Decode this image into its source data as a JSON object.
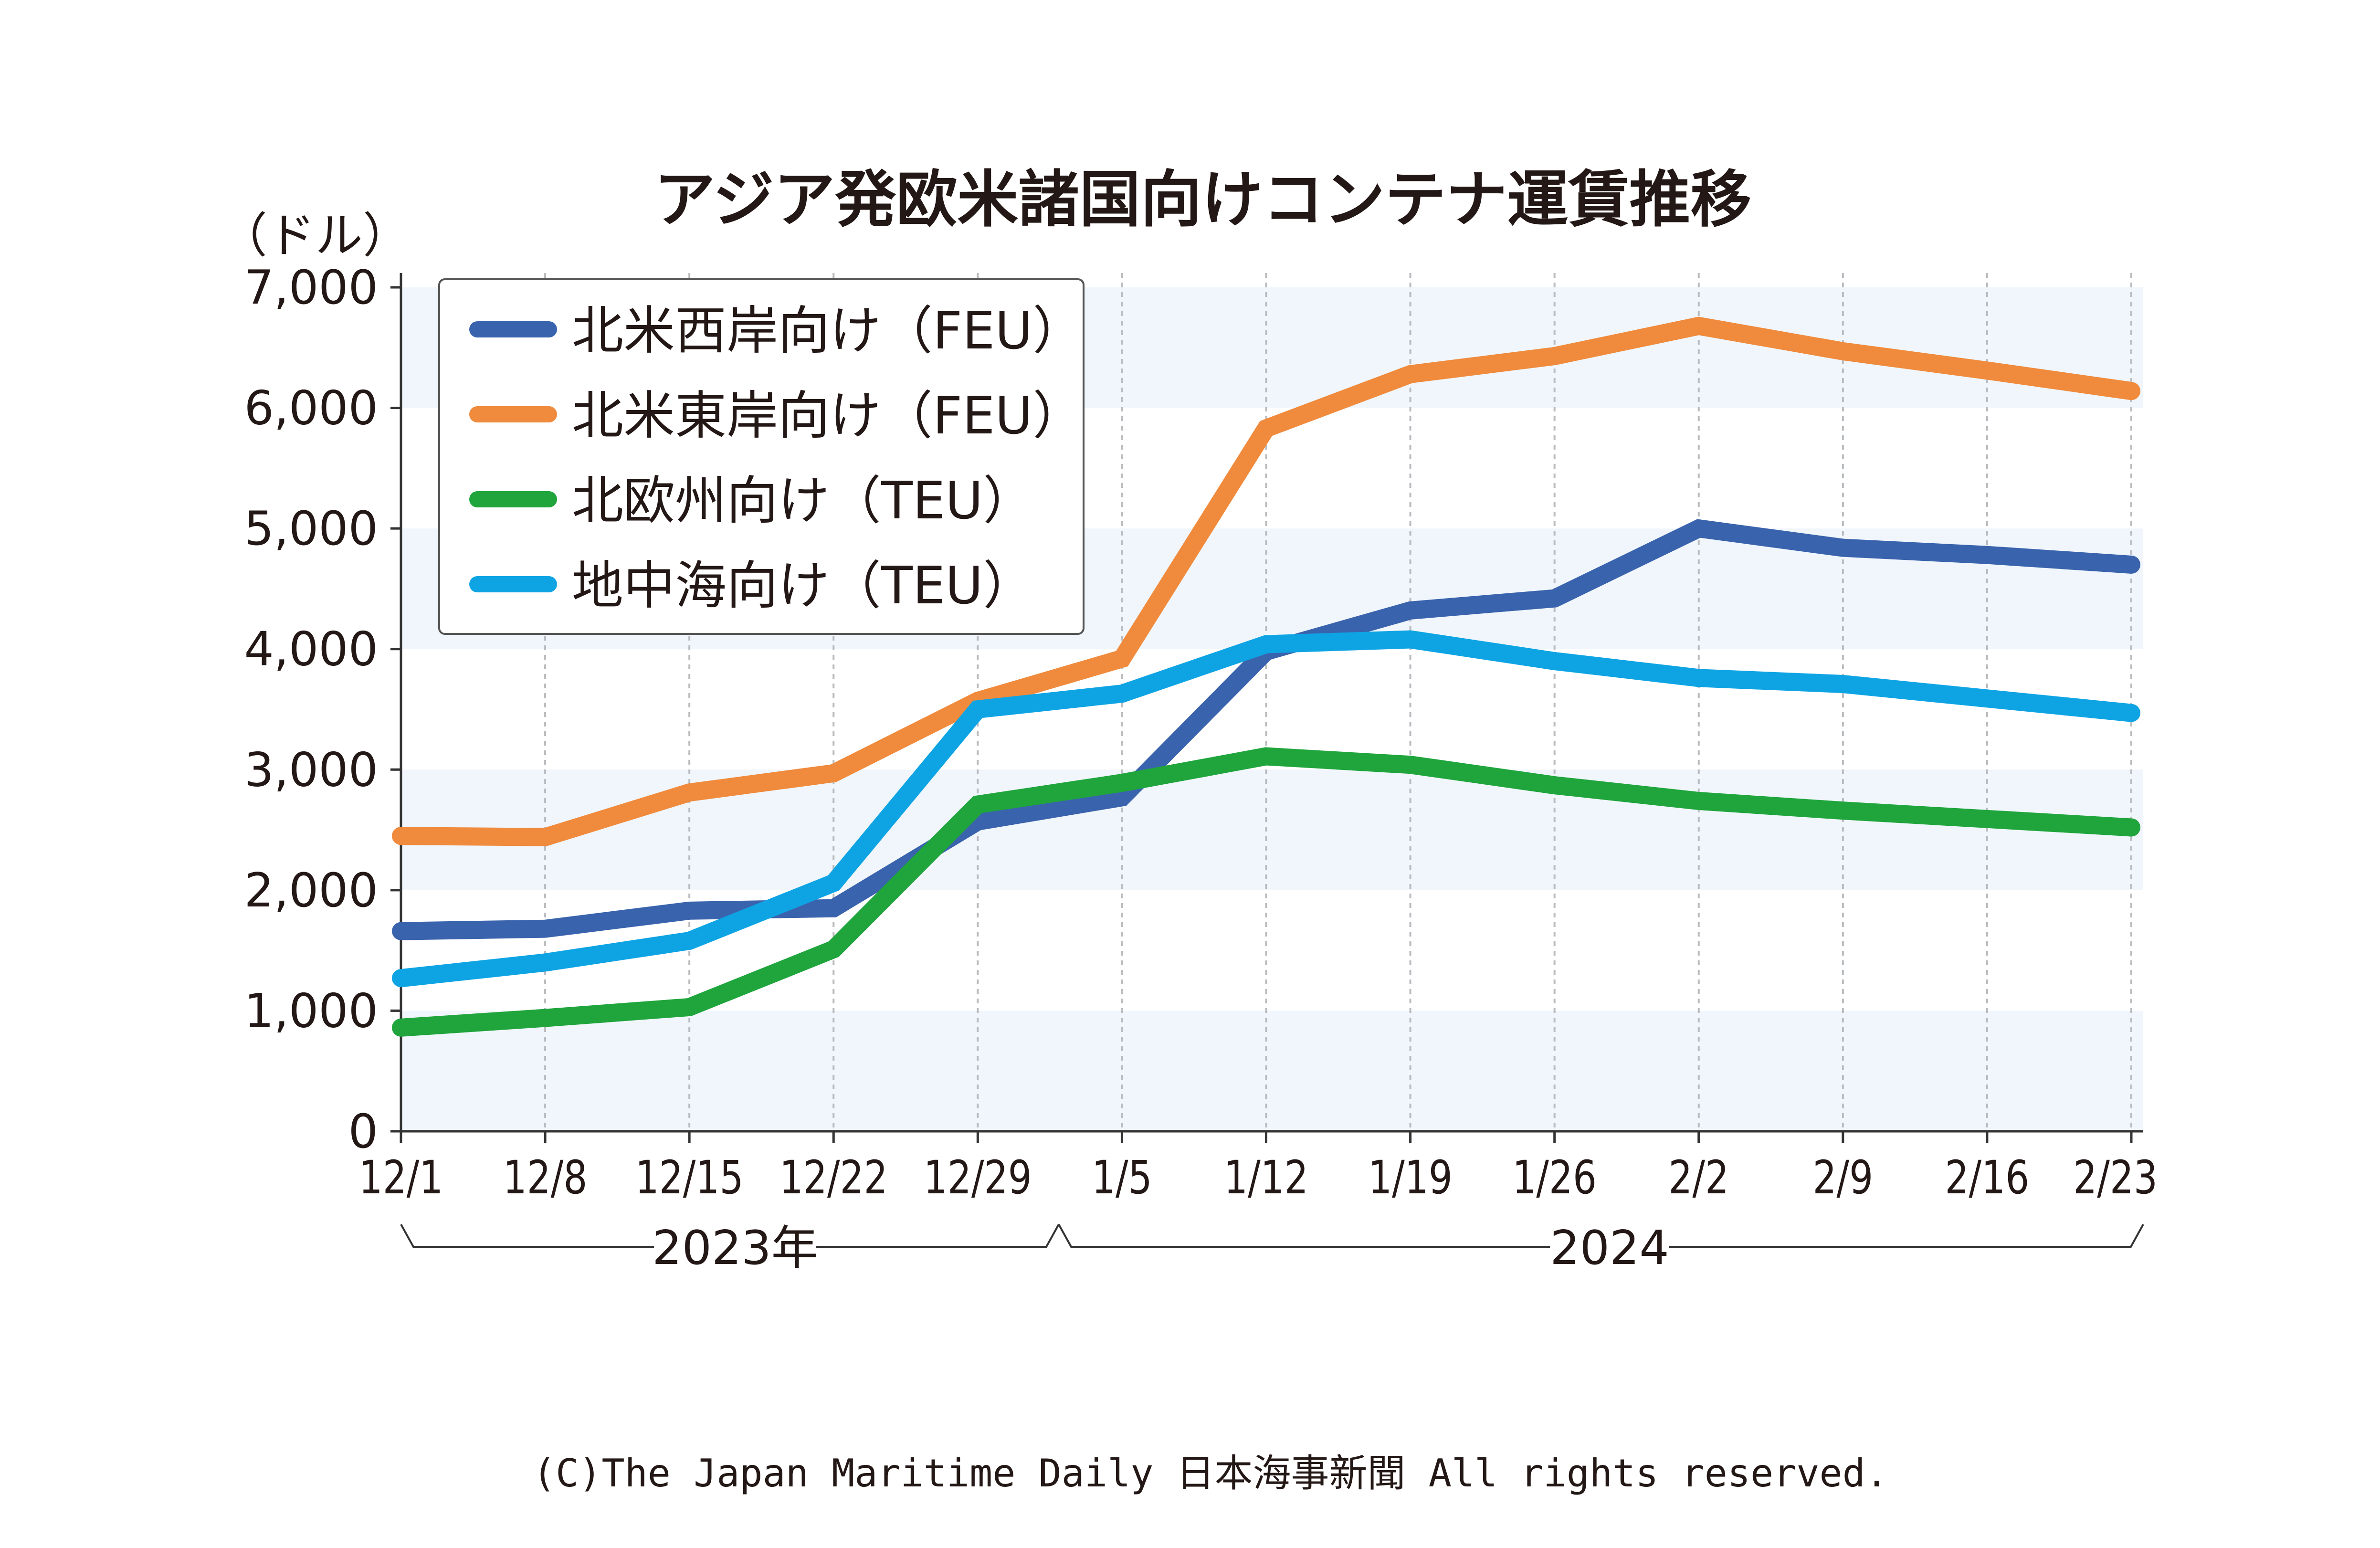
{
  "chart_data": {
    "type": "line",
    "title": "アジア発欧米諸国向けコンテナ運賃推移",
    "ylabel": "（ドル）",
    "xlabel": "",
    "ylim": [
      0,
      7000
    ],
    "yticks": [
      0,
      1000,
      2000,
      3000,
      4000,
      5000,
      6000,
      7000
    ],
    "ytick_labels": [
      "0",
      "1,000",
      "2,000",
      "3,000",
      "4,000",
      "5,000",
      "6,000",
      "7,000"
    ],
    "categories": [
      "12/1",
      "12/8",
      "12/15",
      "12/22",
      "12/29",
      "1/5",
      "1/12",
      "1/19",
      "1/26",
      "2/2",
      "2/9",
      "2/16",
      "2/23"
    ],
    "year_groups": [
      {
        "label": "2023年",
        "from": "12/1",
        "to": "12/29"
      },
      {
        "label": "2024",
        "from": "1/5",
        "to": "2/23"
      }
    ],
    "grid": true,
    "legend_position": "top-left",
    "series": [
      {
        "name": "北米西岸向け（FEU）",
        "color": "#3a63ad",
        "values": [
          1660,
          1680,
          1830,
          1850,
          2570,
          2770,
          3980,
          4320,
          4420,
          5000,
          4840,
          4780,
          4700
        ]
      },
      {
        "name": "北米東岸向け（FEU）",
        "color": "#f08a3c",
        "values": [
          2450,
          2440,
          2810,
          2970,
          3570,
          3920,
          5830,
          6280,
          6430,
          6680,
          6470,
          6310,
          6140
        ]
      },
      {
        "name": "北欧州向け（TEU）",
        "color": "#1fa53c",
        "values": [
          860,
          940,
          1030,
          1510,
          2710,
          2890,
          3110,
          3040,
          2870,
          2740,
          2660,
          2590,
          2520
        ]
      },
      {
        "name": "地中海向け（TEU）",
        "color": "#0ea4e4",
        "values": [
          1270,
          1400,
          1580,
          2060,
          3500,
          3630,
          4040,
          4080,
          3900,
          3760,
          3710,
          3590,
          3470
        ]
      }
    ]
  },
  "copyright": "(C)The Japan Maritime Daily 日本海事新聞 All rights reserved."
}
